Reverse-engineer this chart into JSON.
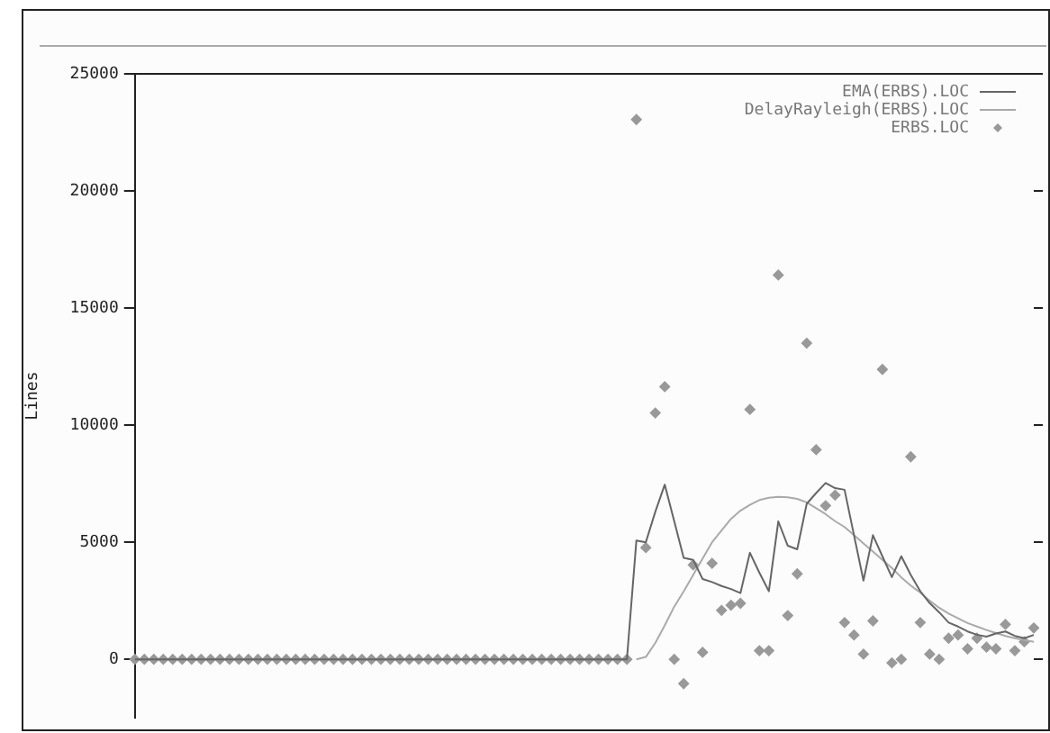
{
  "chart_data": {
    "type": "line",
    "ylabel": "Lines",
    "categories": [
      null,
      null,
      null,
      null,
      null,
      null,
      null,
      null,
      null,
      null,
      null,
      null,
      null,
      null,
      null,
      null,
      null,
      null,
      null,
      null,
      null,
      null,
      null,
      null,
      null,
      null,
      null,
      null,
      null,
      null,
      null,
      null,
      null,
      null,
      null,
      null,
      null,
      null,
      null,
      null,
      null,
      null,
      null,
      null,
      null,
      null,
      null,
      null,
      null,
      null,
      null,
      null,
      null,
      null,
      null,
      null,
      null,
      null,
      null,
      null,
      null,
      null,
      null,
      null,
      null,
      null,
      null,
      null,
      null,
      null,
      null,
      null,
      null,
      null,
      null,
      null,
      null,
      null,
      null,
      null,
      null,
      null,
      null,
      null,
      null,
      null,
      null,
      null,
      null,
      null,
      null,
      null,
      null,
      null,
      null,
      null
    ],
    "series": [
      {
        "name": "EMA(ERBS).LOC",
        "type": "line",
        "color": "#666666",
        "values": [
          0,
          0,
          0,
          0,
          0,
          0,
          0,
          0,
          0,
          0,
          0,
          0,
          0,
          0,
          0,
          0,
          0,
          0,
          0,
          0,
          0,
          0,
          0,
          0,
          0,
          0,
          0,
          0,
          0,
          0,
          0,
          0,
          0,
          0,
          0,
          0,
          0,
          0,
          0,
          0,
          0,
          0,
          0,
          0,
          0,
          0,
          0,
          0,
          0,
          0,
          0,
          0,
          0,
          5070,
          5000,
          6300,
          7460,
          5900,
          4330,
          4250,
          3430,
          3300,
          3130,
          3000,
          2830,
          4550,
          3700,
          2910,
          5890,
          4850,
          4700,
          6640,
          7100,
          7530,
          7310,
          7240,
          5300,
          3360,
          5300,
          4400,
          3510,
          4400,
          3600,
          2910,
          2400,
          2010,
          1570,
          1400,
          1190,
          1050,
          970,
          1100,
          1190,
          1000,
          900,
          1040
        ]
      },
      {
        "name": "DelayRayleigh(ERBS).LOC",
        "type": "line",
        "color": "#aaaaaa",
        "values": [
          null,
          null,
          null,
          null,
          null,
          null,
          null,
          null,
          null,
          null,
          null,
          null,
          null,
          null,
          null,
          null,
          null,
          null,
          null,
          null,
          null,
          null,
          null,
          null,
          null,
          null,
          null,
          null,
          null,
          null,
          null,
          null,
          null,
          null,
          null,
          null,
          null,
          null,
          null,
          null,
          null,
          null,
          null,
          null,
          null,
          null,
          null,
          null,
          null,
          null,
          null,
          null,
          null,
          0,
          100,
          700,
          1450,
          2250,
          2900,
          3600,
          4300,
          5000,
          5500,
          6000,
          6350,
          6600,
          6800,
          6900,
          6940,
          6920,
          6850,
          6700,
          6450,
          6200,
          5900,
          5650,
          5300,
          4950,
          4600,
          4250,
          3900,
          3500,
          3150,
          2850,
          2500,
          2200,
          1950,
          1750,
          1550,
          1400,
          1250,
          1120,
          1000,
          900,
          820,
          750
        ]
      },
      {
        "name": "ERBS.LOC",
        "type": "scatter",
        "marker": "diamond",
        "color": "#999999",
        "values": [
          0,
          0,
          0,
          0,
          0,
          0,
          0,
          0,
          0,
          0,
          0,
          0,
          0,
          0,
          0,
          0,
          0,
          0,
          0,
          0,
          0,
          0,
          0,
          0,
          0,
          0,
          0,
          0,
          0,
          0,
          0,
          0,
          0,
          0,
          0,
          0,
          0,
          0,
          0,
          0,
          0,
          0,
          0,
          0,
          0,
          0,
          0,
          0,
          0,
          0,
          0,
          0,
          0,
          23050,
          4770,
          10520,
          11640,
          0,
          -1040,
          4030,
          300,
          4100,
          2090,
          2310,
          2390,
          10670,
          370,
          370,
          16410,
          1870,
          3650,
          13500,
          8950,
          6560,
          7010,
          1570,
          1040,
          220,
          1640,
          12380,
          -150,
          0,
          8650,
          1570,
          220,
          0,
          900,
          1040,
          450,
          900,
          520,
          450,
          1490,
          370,
          750,
          1340
        ]
      }
    ],
    "ylim": [
      -2500,
      25000
    ],
    "yticks": [
      0,
      5000,
      10000,
      15000,
      20000,
      25000
    ],
    "tick_labels": "y",
    "grid": false,
    "legend": "top right"
  }
}
